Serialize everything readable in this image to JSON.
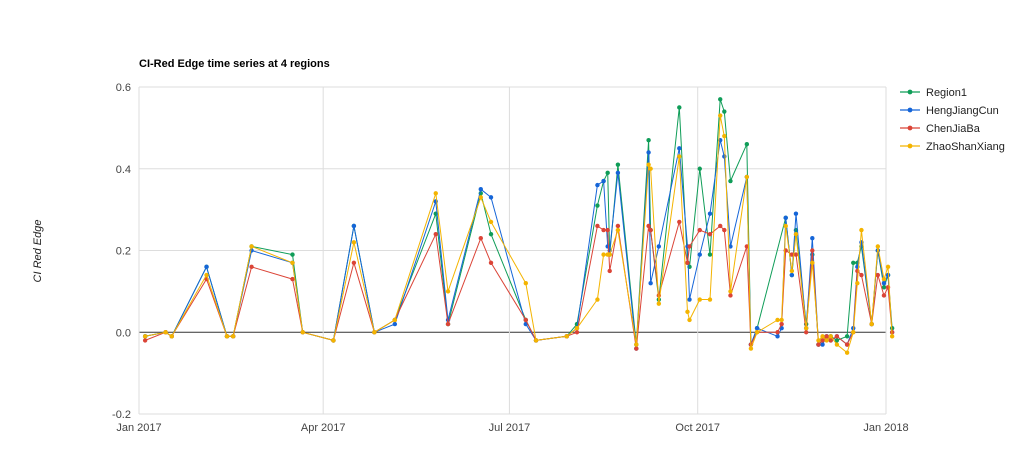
{
  "chart_data": {
    "type": "line",
    "title": "CI-Red Edge time series at 4 regions",
    "xlabel": "",
    "ylabel": "CI Red Edge",
    "x_ticks": [
      "Jan 2017",
      "Apr 2017",
      "Jul 2017",
      "Oct 2017",
      "Jan 2018"
    ],
    "x_tick_values": [
      "2017-01-01",
      "2017-04-01",
      "2017-07-01",
      "2017-10-01",
      "2018-01-01"
    ],
    "xlim": [
      "2017-01-01",
      "2018-01-01"
    ],
    "y_ticks": [
      "0.6",
      "0.4",
      "0.2",
      "0.0",
      "-0.2"
    ],
    "y_tick_values": [
      0.6,
      0.4,
      0.2,
      0.0,
      -0.2
    ],
    "ylim": [
      -0.2,
      0.6
    ],
    "grid": true,
    "legend_position": "right",
    "series": [
      {
        "name": "Region1",
        "color": "#0f9d58",
        "points": [
          [
            "2017-01-04",
            -0.01
          ],
          [
            "2017-01-14",
            0.0
          ],
          [
            "2017-01-17",
            -0.01
          ],
          [
            "2017-02-03",
            0.16
          ],
          [
            "2017-02-13",
            -0.01
          ],
          [
            "2017-02-16",
            -0.01
          ],
          [
            "2017-02-25",
            0.21
          ],
          [
            "2017-03-17",
            0.19
          ],
          [
            "2017-03-22",
            0.0
          ],
          [
            "2017-04-06",
            -0.02
          ],
          [
            "2017-04-16",
            0.26
          ],
          [
            "2017-04-26",
            0.0
          ],
          [
            "2017-05-06",
            0.03
          ],
          [
            "2017-05-26",
            0.29
          ],
          [
            "2017-06-01",
            0.02
          ],
          [
            "2017-06-17",
            0.34
          ],
          [
            "2017-06-22",
            0.24
          ],
          [
            "2017-07-09",
            0.03
          ],
          [
            "2017-07-14",
            -0.02
          ],
          [
            "2017-07-29",
            -0.01
          ],
          [
            "2017-08-03",
            0.02
          ],
          [
            "2017-08-13",
            0.31
          ],
          [
            "2017-08-16",
            0.37
          ],
          [
            "2017-08-18",
            0.39
          ],
          [
            "2017-08-19",
            0.19
          ],
          [
            "2017-08-23",
            0.41
          ],
          [
            "2017-09-01",
            -0.03
          ],
          [
            "2017-09-07",
            0.47
          ],
          [
            "2017-09-08",
            0.25
          ],
          [
            "2017-09-12",
            0.08
          ],
          [
            "2017-09-22",
            0.55
          ],
          [
            "2017-09-26",
            0.17
          ],
          [
            "2017-09-27",
            0.16
          ],
          [
            "2017-10-02",
            0.4
          ],
          [
            "2017-10-07",
            0.19
          ],
          [
            "2017-10-12",
            0.57
          ],
          [
            "2017-10-14",
            0.54
          ],
          [
            "2017-10-17",
            0.37
          ],
          [
            "2017-10-25",
            0.46
          ],
          [
            "2017-10-27",
            -0.03
          ],
          [
            "2017-10-30",
            0.01
          ],
          [
            "2017-11-13",
            0.28
          ],
          [
            "2017-11-16",
            0.14
          ],
          [
            "2017-11-18",
            0.25
          ],
          [
            "2017-11-23",
            0.02
          ],
          [
            "2017-11-26",
            0.19
          ],
          [
            "2017-11-29",
            -0.03
          ],
          [
            "2017-12-01",
            -0.02
          ],
          [
            "2017-12-03",
            -0.01
          ],
          [
            "2017-12-05",
            -0.01
          ],
          [
            "2017-12-08",
            -0.02
          ],
          [
            "2017-12-13",
            -0.01
          ],
          [
            "2017-12-16",
            0.17
          ],
          [
            "2017-12-18",
            0.17
          ],
          [
            "2017-12-20",
            0.21
          ],
          [
            "2017-12-25",
            0.02
          ],
          [
            "2017-12-28",
            0.2
          ],
          [
            "2017-12-31",
            0.11
          ],
          [
            "2018-01-02",
            0.14
          ],
          [
            "2018-01-04",
            0.01
          ]
        ]
      },
      {
        "name": "HengJiangCun",
        "color": "#1565d8",
        "points": [
          [
            "2017-01-04",
            -0.01
          ],
          [
            "2017-01-14",
            0.0
          ],
          [
            "2017-01-17",
            -0.01
          ],
          [
            "2017-02-03",
            0.16
          ],
          [
            "2017-02-13",
            -0.01
          ],
          [
            "2017-02-16",
            -0.01
          ],
          [
            "2017-02-25",
            0.2
          ],
          [
            "2017-03-17",
            0.17
          ],
          [
            "2017-03-22",
            0.0
          ],
          [
            "2017-04-06",
            -0.02
          ],
          [
            "2017-04-16",
            0.26
          ],
          [
            "2017-04-26",
            0.0
          ],
          [
            "2017-05-06",
            0.02
          ],
          [
            "2017-05-26",
            0.32
          ],
          [
            "2017-06-01",
            0.03
          ],
          [
            "2017-06-17",
            0.35
          ],
          [
            "2017-06-22",
            0.33
          ],
          [
            "2017-07-09",
            0.02
          ],
          [
            "2017-07-14",
            -0.02
          ],
          [
            "2017-07-29",
            -0.01
          ],
          [
            "2017-08-03",
            0.01
          ],
          [
            "2017-08-13",
            0.36
          ],
          [
            "2017-08-16",
            0.37
          ],
          [
            "2017-08-18",
            0.21
          ],
          [
            "2017-08-19",
            0.2
          ],
          [
            "2017-08-23",
            0.39
          ],
          [
            "2017-09-01",
            -0.04
          ],
          [
            "2017-09-07",
            0.44
          ],
          [
            "2017-09-08",
            0.12
          ],
          [
            "2017-09-12",
            0.21
          ],
          [
            "2017-09-22",
            0.45
          ],
          [
            "2017-09-26",
            0.21
          ],
          [
            "2017-09-27",
            0.08
          ],
          [
            "2017-10-02",
            0.19
          ],
          [
            "2017-10-07",
            0.29
          ],
          [
            "2017-10-12",
            0.47
          ],
          [
            "2017-10-14",
            0.43
          ],
          [
            "2017-10-17",
            0.21
          ],
          [
            "2017-10-25",
            0.38
          ],
          [
            "2017-10-27",
            -0.03
          ],
          [
            "2017-10-30",
            0.01
          ],
          [
            "2017-11-09",
            -0.01
          ],
          [
            "2017-11-11",
            0.01
          ],
          [
            "2017-11-13",
            0.28
          ],
          [
            "2017-11-16",
            0.14
          ],
          [
            "2017-11-18",
            0.29
          ],
          [
            "2017-11-23",
            0.01
          ],
          [
            "2017-11-26",
            0.23
          ],
          [
            "2017-11-29",
            -0.03
          ],
          [
            "2017-12-01",
            -0.03
          ],
          [
            "2017-12-03",
            -0.01
          ],
          [
            "2017-12-05",
            -0.02
          ],
          [
            "2017-12-08",
            -0.01
          ],
          [
            "2017-12-13",
            -0.03
          ],
          [
            "2017-12-16",
            0.01
          ],
          [
            "2017-12-18",
            0.16
          ],
          [
            "2017-12-20",
            0.22
          ],
          [
            "2017-12-25",
            0.02
          ],
          [
            "2017-12-28",
            0.2
          ],
          [
            "2017-12-31",
            0.12
          ],
          [
            "2018-01-02",
            0.14
          ],
          [
            "2018-01-04",
            0.0
          ]
        ]
      },
      {
        "name": "ChenJiaBa",
        "color": "#db4437",
        "points": [
          [
            "2017-01-04",
            -0.02
          ],
          [
            "2017-01-14",
            0.0
          ],
          [
            "2017-01-17",
            -0.01
          ],
          [
            "2017-02-03",
            0.13
          ],
          [
            "2017-02-13",
            -0.01
          ],
          [
            "2017-02-16",
            -0.01
          ],
          [
            "2017-02-25",
            0.16
          ],
          [
            "2017-03-17",
            0.13
          ],
          [
            "2017-03-22",
            0.0
          ],
          [
            "2017-04-06",
            -0.02
          ],
          [
            "2017-04-16",
            0.17
          ],
          [
            "2017-04-26",
            0.0
          ],
          [
            "2017-05-06",
            0.03
          ],
          [
            "2017-05-26",
            0.24
          ],
          [
            "2017-06-01",
            0.02
          ],
          [
            "2017-06-17",
            0.23
          ],
          [
            "2017-06-22",
            0.17
          ],
          [
            "2017-07-09",
            0.03
          ],
          [
            "2017-07-14",
            -0.02
          ],
          [
            "2017-07-29",
            -0.01
          ],
          [
            "2017-08-03",
            0.0
          ],
          [
            "2017-08-13",
            0.26
          ],
          [
            "2017-08-16",
            0.25
          ],
          [
            "2017-08-18",
            0.25
          ],
          [
            "2017-08-19",
            0.15
          ],
          [
            "2017-08-23",
            0.26
          ],
          [
            "2017-09-01",
            -0.04
          ],
          [
            "2017-09-07",
            0.26
          ],
          [
            "2017-09-08",
            0.25
          ],
          [
            "2017-09-12",
            0.09
          ],
          [
            "2017-09-22",
            0.27
          ],
          [
            "2017-09-26",
            0.17
          ],
          [
            "2017-09-27",
            0.21
          ],
          [
            "2017-10-02",
            0.25
          ],
          [
            "2017-10-07",
            0.24
          ],
          [
            "2017-10-12",
            0.26
          ],
          [
            "2017-10-14",
            0.25
          ],
          [
            "2017-10-17",
            0.09
          ],
          [
            "2017-10-25",
            0.21
          ],
          [
            "2017-10-27",
            -0.03
          ],
          [
            "2017-10-30",
            0.0
          ],
          [
            "2017-11-09",
            0.0
          ],
          [
            "2017-11-11",
            0.02
          ],
          [
            "2017-11-13",
            0.2
          ],
          [
            "2017-11-16",
            0.19
          ],
          [
            "2017-11-18",
            0.19
          ],
          [
            "2017-11-23",
            0.0
          ],
          [
            "2017-11-26",
            0.2
          ],
          [
            "2017-11-29",
            -0.03
          ],
          [
            "2017-12-01",
            -0.02
          ],
          [
            "2017-12-03",
            -0.01
          ],
          [
            "2017-12-05",
            -0.02
          ],
          [
            "2017-12-08",
            -0.01
          ],
          [
            "2017-12-13",
            -0.03
          ],
          [
            "2017-12-16",
            0.0
          ],
          [
            "2017-12-18",
            0.15
          ],
          [
            "2017-12-20",
            0.14
          ],
          [
            "2017-12-25",
            0.02
          ],
          [
            "2017-12-28",
            0.14
          ],
          [
            "2017-12-31",
            0.09
          ],
          [
            "2018-01-02",
            0.11
          ],
          [
            "2018-01-04",
            0.0
          ]
        ]
      },
      {
        "name": "ZhaoShanXiang",
        "color": "#f4b400",
        "points": [
          [
            "2017-01-04",
            -0.01
          ],
          [
            "2017-01-14",
            0.0
          ],
          [
            "2017-01-17",
            -0.01
          ],
          [
            "2017-02-03",
            0.14
          ],
          [
            "2017-02-13",
            -0.01
          ],
          [
            "2017-02-16",
            -0.01
          ],
          [
            "2017-02-25",
            0.21
          ],
          [
            "2017-03-17",
            0.17
          ],
          [
            "2017-03-22",
            0.0
          ],
          [
            "2017-04-06",
            -0.02
          ],
          [
            "2017-04-16",
            0.22
          ],
          [
            "2017-04-26",
            0.0
          ],
          [
            "2017-05-06",
            0.03
          ],
          [
            "2017-05-26",
            0.34
          ],
          [
            "2017-06-01",
            0.1
          ],
          [
            "2017-06-17",
            0.33
          ],
          [
            "2017-06-22",
            0.27
          ],
          [
            "2017-07-09",
            0.12
          ],
          [
            "2017-07-14",
            -0.02
          ],
          [
            "2017-07-29",
            -0.01
          ],
          [
            "2017-08-03",
            0.01
          ],
          [
            "2017-08-13",
            0.08
          ],
          [
            "2017-08-16",
            0.19
          ],
          [
            "2017-08-18",
            0.19
          ],
          [
            "2017-08-19",
            0.19
          ],
          [
            "2017-08-23",
            0.25
          ],
          [
            "2017-09-01",
            -0.03
          ],
          [
            "2017-09-07",
            0.41
          ],
          [
            "2017-09-08",
            0.4
          ],
          [
            "2017-09-12",
            0.07
          ],
          [
            "2017-09-22",
            0.43
          ],
          [
            "2017-09-26",
            0.05
          ],
          [
            "2017-09-27",
            0.03
          ],
          [
            "2017-10-02",
            0.08
          ],
          [
            "2017-10-07",
            0.08
          ],
          [
            "2017-10-12",
            0.53
          ],
          [
            "2017-10-14",
            0.48
          ],
          [
            "2017-10-17",
            0.1
          ],
          [
            "2017-10-25",
            0.38
          ],
          [
            "2017-10-27",
            -0.04
          ],
          [
            "2017-10-30",
            0.0
          ],
          [
            "2017-11-09",
            0.03
          ],
          [
            "2017-11-11",
            0.03
          ],
          [
            "2017-11-13",
            0.26
          ],
          [
            "2017-11-16",
            0.15
          ],
          [
            "2017-11-18",
            0.24
          ],
          [
            "2017-11-23",
            0.01
          ],
          [
            "2017-11-26",
            0.17
          ],
          [
            "2017-11-29",
            -0.02
          ],
          [
            "2017-12-01",
            -0.01
          ],
          [
            "2017-12-03",
            -0.02
          ],
          [
            "2017-12-05",
            -0.01
          ],
          [
            "2017-12-08",
            -0.03
          ],
          [
            "2017-12-13",
            -0.05
          ],
          [
            "2017-12-16",
            0.0
          ],
          [
            "2017-12-18",
            0.12
          ],
          [
            "2017-12-20",
            0.25
          ],
          [
            "2017-12-25",
            0.02
          ],
          [
            "2017-12-28",
            0.21
          ],
          [
            "2017-12-31",
            0.13
          ],
          [
            "2018-01-02",
            0.16
          ],
          [
            "2018-01-04",
            -0.01
          ]
        ]
      }
    ]
  }
}
